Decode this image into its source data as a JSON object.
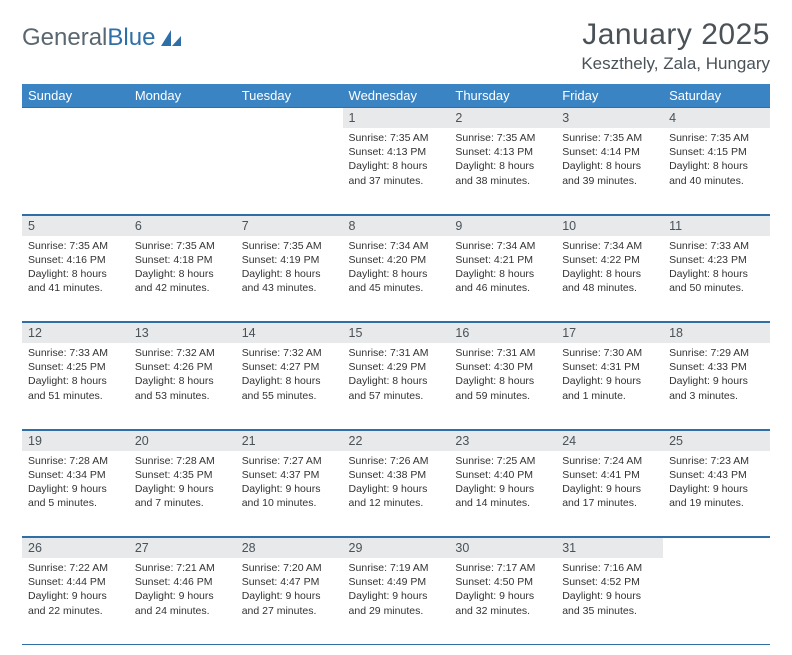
{
  "branding": {
    "logo_text_1": "General",
    "logo_text_2": "Blue",
    "logo_color_gray": "#5a6770",
    "logo_color_blue": "#2f6fa8"
  },
  "header": {
    "month_title": "January 2025",
    "location": "Keszthely, Zala, Hungary"
  },
  "colors": {
    "header_bg": "#3b84c4",
    "header_text": "#ffffff",
    "daynum_bg": "#e7e9ea",
    "rule": "#2f6fa8",
    "text": "#333333"
  },
  "weekdays": [
    "Sunday",
    "Monday",
    "Tuesday",
    "Wednesday",
    "Thursday",
    "Friday",
    "Saturday"
  ],
  "weeks": [
    [
      null,
      null,
      null,
      {
        "n": "1",
        "sr": "7:35 AM",
        "ss": "4:13 PM",
        "dl": "8 hours and 37 minutes."
      },
      {
        "n": "2",
        "sr": "7:35 AM",
        "ss": "4:13 PM",
        "dl": "8 hours and 38 minutes."
      },
      {
        "n": "3",
        "sr": "7:35 AM",
        "ss": "4:14 PM",
        "dl": "8 hours and 39 minutes."
      },
      {
        "n": "4",
        "sr": "7:35 AM",
        "ss": "4:15 PM",
        "dl": "8 hours and 40 minutes."
      }
    ],
    [
      {
        "n": "5",
        "sr": "7:35 AM",
        "ss": "4:16 PM",
        "dl": "8 hours and 41 minutes."
      },
      {
        "n": "6",
        "sr": "7:35 AM",
        "ss": "4:18 PM",
        "dl": "8 hours and 42 minutes."
      },
      {
        "n": "7",
        "sr": "7:35 AM",
        "ss": "4:19 PM",
        "dl": "8 hours and 43 minutes."
      },
      {
        "n": "8",
        "sr": "7:34 AM",
        "ss": "4:20 PM",
        "dl": "8 hours and 45 minutes."
      },
      {
        "n": "9",
        "sr": "7:34 AM",
        "ss": "4:21 PM",
        "dl": "8 hours and 46 minutes."
      },
      {
        "n": "10",
        "sr": "7:34 AM",
        "ss": "4:22 PM",
        "dl": "8 hours and 48 minutes."
      },
      {
        "n": "11",
        "sr": "7:33 AM",
        "ss": "4:23 PM",
        "dl": "8 hours and 50 minutes."
      }
    ],
    [
      {
        "n": "12",
        "sr": "7:33 AM",
        "ss": "4:25 PM",
        "dl": "8 hours and 51 minutes."
      },
      {
        "n": "13",
        "sr": "7:32 AM",
        "ss": "4:26 PM",
        "dl": "8 hours and 53 minutes."
      },
      {
        "n": "14",
        "sr": "7:32 AM",
        "ss": "4:27 PM",
        "dl": "8 hours and 55 minutes."
      },
      {
        "n": "15",
        "sr": "7:31 AM",
        "ss": "4:29 PM",
        "dl": "8 hours and 57 minutes."
      },
      {
        "n": "16",
        "sr": "7:31 AM",
        "ss": "4:30 PM",
        "dl": "8 hours and 59 minutes."
      },
      {
        "n": "17",
        "sr": "7:30 AM",
        "ss": "4:31 PM",
        "dl": "9 hours and 1 minute."
      },
      {
        "n": "18",
        "sr": "7:29 AM",
        "ss": "4:33 PM",
        "dl": "9 hours and 3 minutes."
      }
    ],
    [
      {
        "n": "19",
        "sr": "7:28 AM",
        "ss": "4:34 PM",
        "dl": "9 hours and 5 minutes."
      },
      {
        "n": "20",
        "sr": "7:28 AM",
        "ss": "4:35 PM",
        "dl": "9 hours and 7 minutes."
      },
      {
        "n": "21",
        "sr": "7:27 AM",
        "ss": "4:37 PM",
        "dl": "9 hours and 10 minutes."
      },
      {
        "n": "22",
        "sr": "7:26 AM",
        "ss": "4:38 PM",
        "dl": "9 hours and 12 minutes."
      },
      {
        "n": "23",
        "sr": "7:25 AM",
        "ss": "4:40 PM",
        "dl": "9 hours and 14 minutes."
      },
      {
        "n": "24",
        "sr": "7:24 AM",
        "ss": "4:41 PM",
        "dl": "9 hours and 17 minutes."
      },
      {
        "n": "25",
        "sr": "7:23 AM",
        "ss": "4:43 PM",
        "dl": "9 hours and 19 minutes."
      }
    ],
    [
      {
        "n": "26",
        "sr": "7:22 AM",
        "ss": "4:44 PM",
        "dl": "9 hours and 22 minutes."
      },
      {
        "n": "27",
        "sr": "7:21 AM",
        "ss": "4:46 PM",
        "dl": "9 hours and 24 minutes."
      },
      {
        "n": "28",
        "sr": "7:20 AM",
        "ss": "4:47 PM",
        "dl": "9 hours and 27 minutes."
      },
      {
        "n": "29",
        "sr": "7:19 AM",
        "ss": "4:49 PM",
        "dl": "9 hours and 29 minutes."
      },
      {
        "n": "30",
        "sr": "7:17 AM",
        "ss": "4:50 PM",
        "dl": "9 hours and 32 minutes."
      },
      {
        "n": "31",
        "sr": "7:16 AM",
        "ss": "4:52 PM",
        "dl": "9 hours and 35 minutes."
      },
      null
    ]
  ],
  "labels": {
    "sunrise": "Sunrise:",
    "sunset": "Sunset:",
    "daylight": "Daylight:"
  }
}
